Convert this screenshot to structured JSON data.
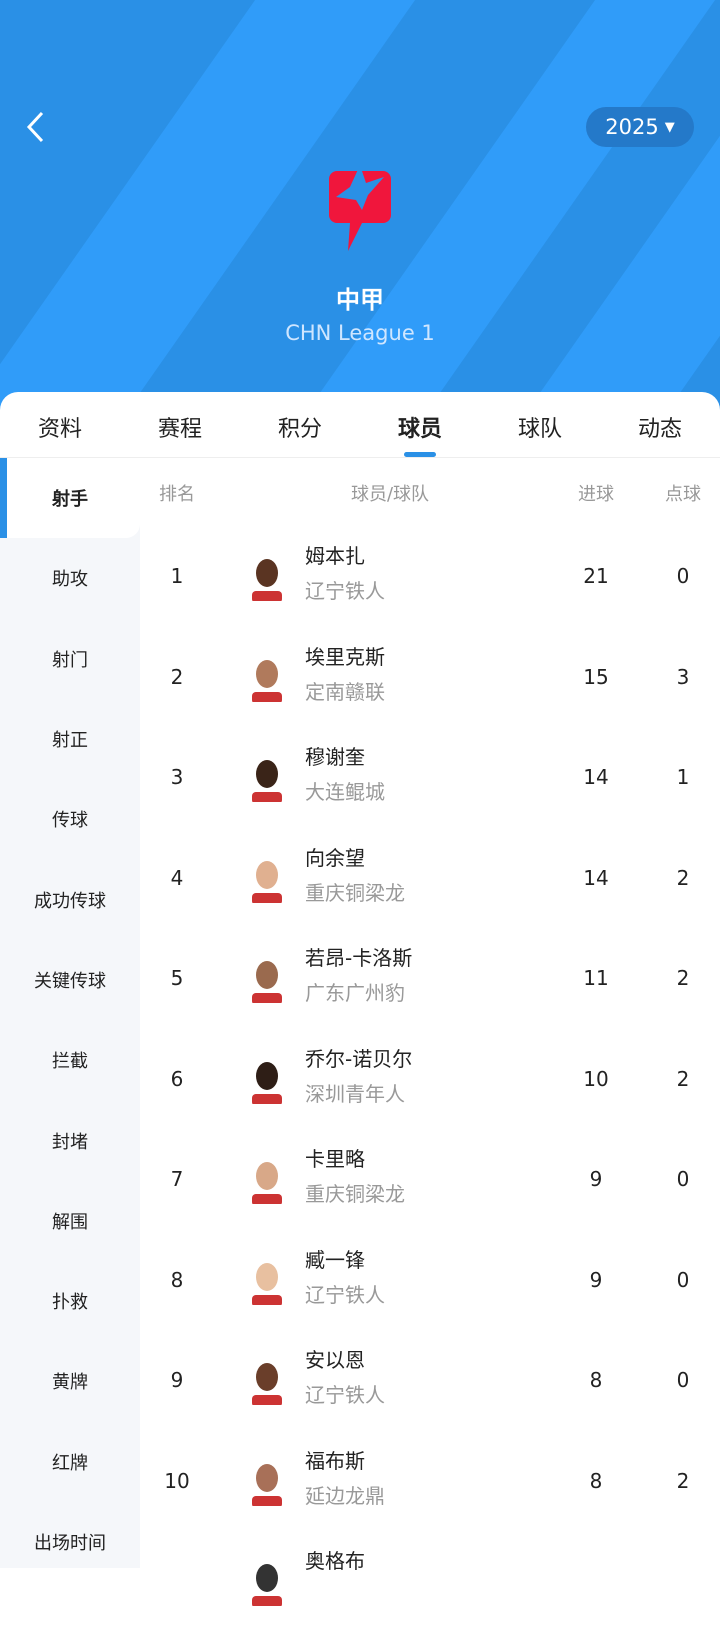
{
  "header": {
    "season": "2025",
    "league_name": "中甲",
    "league_name_en": "CHN League 1"
  },
  "tabs": [
    {
      "label": "资料"
    },
    {
      "label": "赛程"
    },
    {
      "label": "积分"
    },
    {
      "label": "球员",
      "active": true
    },
    {
      "label": "球队"
    },
    {
      "label": "动态"
    }
  ],
  "sidebar": [
    {
      "label": "射手",
      "active": true
    },
    {
      "label": "助攻"
    },
    {
      "label": "射门"
    },
    {
      "label": "射正"
    },
    {
      "label": "传球"
    },
    {
      "label": "成功传球"
    },
    {
      "label": "关键传球"
    },
    {
      "label": "拦截"
    },
    {
      "label": "封堵"
    },
    {
      "label": "解围"
    },
    {
      "label": "扑救"
    },
    {
      "label": "黄牌"
    },
    {
      "label": "红牌"
    },
    {
      "label": "出场时间"
    }
  ],
  "table": {
    "headers": {
      "rank": "排名",
      "player": "球员/球队",
      "goals": "进球",
      "penalties": "点球"
    },
    "rows": [
      {
        "rank": "1",
        "name": "姆本扎",
        "team": "辽宁铁人",
        "goals": "21",
        "penalties": "0"
      },
      {
        "rank": "2",
        "name": "埃里克斯",
        "team": "定南赣联",
        "goals": "15",
        "penalties": "3"
      },
      {
        "rank": "3",
        "name": "穆谢奎",
        "team": "大连鲲城",
        "goals": "14",
        "penalties": "1"
      },
      {
        "rank": "4",
        "name": "向余望",
        "team": "重庆铜梁龙",
        "goals": "14",
        "penalties": "2"
      },
      {
        "rank": "5",
        "name": "若昂-卡洛斯",
        "team": "广东广州豹",
        "goals": "11",
        "penalties": "2"
      },
      {
        "rank": "6",
        "name": "乔尔-诺贝尔",
        "team": "深圳青年人",
        "goals": "10",
        "penalties": "2"
      },
      {
        "rank": "7",
        "name": "卡里略",
        "team": "重庆铜梁龙",
        "goals": "9",
        "penalties": "0"
      },
      {
        "rank": "8",
        "name": "臧一锋",
        "team": "辽宁铁人",
        "goals": "9",
        "penalties": "0"
      },
      {
        "rank": "9",
        "name": "安以恩",
        "team": "辽宁铁人",
        "goals": "8",
        "penalties": "0"
      },
      {
        "rank": "10",
        "name": "福布斯",
        "team": "延边龙鼎",
        "goals": "8",
        "penalties": "2"
      },
      {
        "rank": "",
        "name": "奥格布",
        "team": "",
        "goals": "",
        "penalties": ""
      }
    ]
  },
  "colors": {
    "accent": "#2a90e6",
    "logo": "#f0163c"
  }
}
